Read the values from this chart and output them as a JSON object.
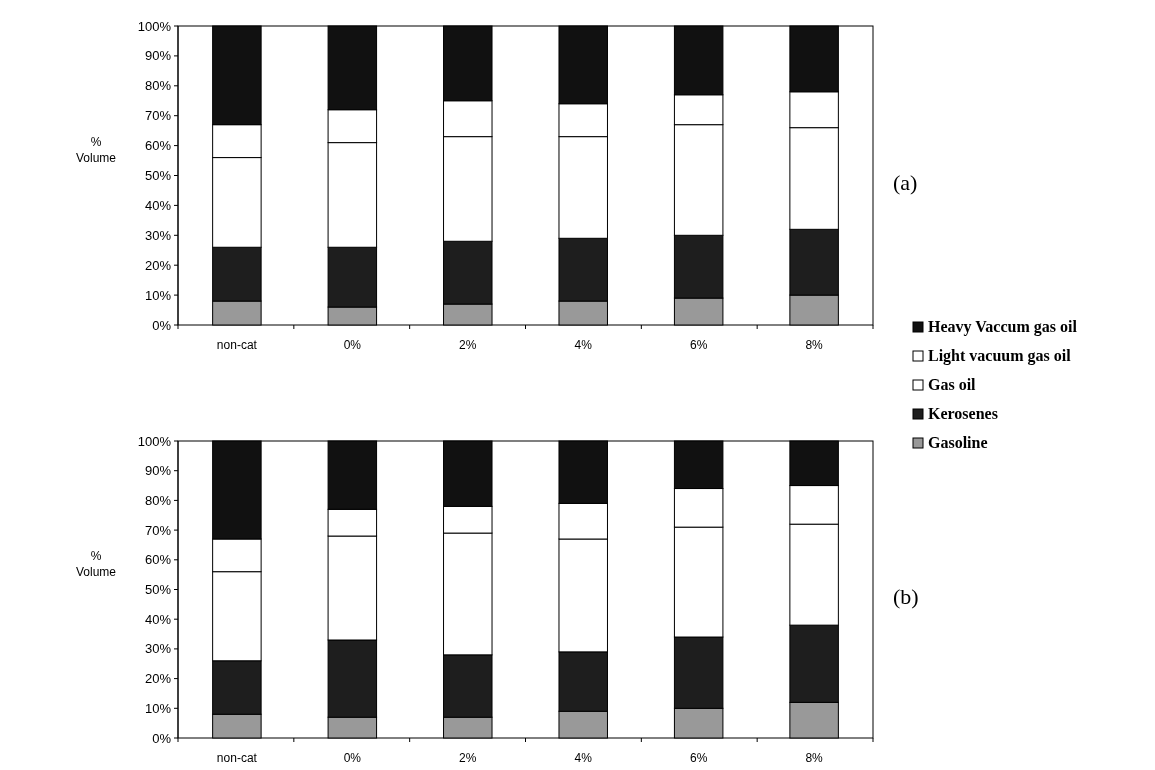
{
  "chart_data": [
    {
      "type": "bar",
      "stacked": true,
      "ylabel": "% Volume",
      "annotations": [
        "(a)"
      ],
      "legend": "right",
      "categories": [
        "non-cat",
        "0%",
        "2%",
        "4%",
        "6%",
        "8%"
      ],
      "ylim": [
        0,
        100
      ],
      "yticks": [
        {
          "value": 0,
          "label": "0%"
        },
        {
          "value": 10,
          "label": "10%"
        },
        {
          "value": 20,
          "label": "20%"
        },
        {
          "value": 30,
          "label": "30%"
        },
        {
          "value": 40,
          "label": "40%"
        },
        {
          "value": 50,
          "label": "50%"
        },
        {
          "value": 60,
          "label": "60%"
        },
        {
          "value": 70,
          "label": "70%"
        },
        {
          "value": 80,
          "label": "80%"
        },
        {
          "value": 90,
          "label": "90%"
        },
        {
          "value": 100,
          "label": "100%"
        }
      ],
      "grid": false,
      "series": [
        {
          "name": "Gasoline",
          "color": "#999999",
          "values": [
            8,
            6,
            7,
            8,
            9,
            10
          ]
        },
        {
          "name": "Kerosenes",
          "color": "#1e1e1e",
          "values": [
            18,
            20,
            21,
            21,
            21,
            22
          ]
        },
        {
          "name": "Gas oil",
          "color": "#ffffff",
          "values": [
            30,
            35,
            35,
            34,
            37,
            34
          ]
        },
        {
          "name": "Light vacuum gas oil",
          "color": "#ffffff",
          "values": [
            11,
            11,
            12,
            11,
            10,
            12
          ]
        },
        {
          "name": "Heavy Vaccum gas oil",
          "color": "#111111",
          "values": [
            33,
            28,
            25,
            26,
            23,
            22
          ]
        }
      ]
    },
    {
      "type": "bar",
      "stacked": true,
      "ylabel": "% Volume",
      "annotations": [
        "(b)"
      ],
      "legend": false,
      "categories": [
        "non-cat",
        "0%",
        "2%",
        "4%",
        "6%",
        "8%"
      ],
      "ylim": [
        0,
        100
      ],
      "yticks": [
        {
          "value": 0,
          "label": "0%"
        },
        {
          "value": 10,
          "label": "10%"
        },
        {
          "value": 20,
          "label": "20%"
        },
        {
          "value": 30,
          "label": "30%"
        },
        {
          "value": 40,
          "label": "40%"
        },
        {
          "value": 50,
          "label": "50%"
        },
        {
          "value": 60,
          "label": "60%"
        },
        {
          "value": 70,
          "label": "70%"
        },
        {
          "value": 80,
          "label": "80%"
        },
        {
          "value": 90,
          "label": "90%"
        },
        {
          "value": 100,
          "label": "100%"
        }
      ],
      "grid": false,
      "series": [
        {
          "color": "#999999",
          "values": [
            8,
            7,
            7,
            9,
            10,
            12
          ]
        },
        {
          "color": "#1e1e1e",
          "values": [
            18,
            26,
            21,
            20,
            24,
            26
          ]
        },
        {
          "color": "#ffffff",
          "values": [
            30,
            35,
            41,
            38,
            37,
            34
          ]
        },
        {
          "color": "#ffffff",
          "values": [
            11,
            9,
            9,
            12,
            13,
            13
          ]
        },
        {
          "color": "#111111",
          "values": [
            33,
            23,
            22,
            21,
            16,
            15
          ]
        }
      ]
    }
  ]
}
